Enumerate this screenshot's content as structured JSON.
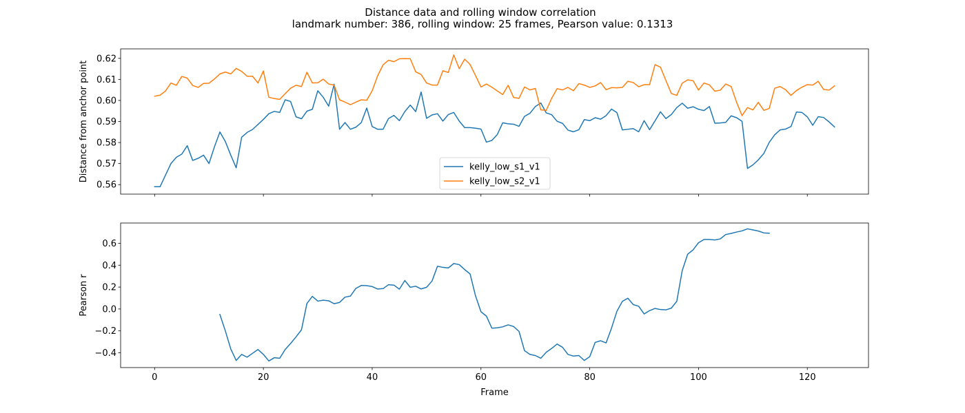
{
  "figure": {
    "title_line1": "Distance data and rolling window correlation",
    "title_line2": "landmark number: 386, rolling window: 25 frames, Pearson value: 0.1313"
  },
  "chart_data": [
    {
      "type": "line",
      "ylabel": "Distance from anchor point",
      "xlabel": "",
      "xlim": [
        -6.25,
        131.25
      ],
      "ylim": [
        0.5555,
        0.6245
      ],
      "yticks": [
        0.56,
        0.57,
        0.58,
        0.59,
        0.6,
        0.61,
        0.62
      ],
      "ytick_labels": [
        "0.56",
        "0.57",
        "0.58",
        "0.59",
        "0.60",
        "0.61",
        "0.62"
      ],
      "xticks": [
        0,
        20,
        40,
        60,
        80,
        100,
        120
      ],
      "show_xtick_labels": false,
      "legend_position": "lower-center",
      "series": [
        {
          "name": "kelly_low_s1_v1",
          "color": "#1f77b4",
          "x_start": 0,
          "values": [
            0.559,
            0.559,
            0.5645,
            0.57,
            0.573,
            0.5745,
            0.5785,
            0.5715,
            0.5725,
            0.574,
            0.57,
            0.578,
            0.585,
            0.5805,
            0.574,
            0.568,
            0.5825,
            0.5848,
            0.5862,
            0.5886,
            0.591,
            0.5937,
            0.5948,
            0.5943,
            0.6003,
            0.5995,
            0.5922,
            0.5913,
            0.5949,
            0.5958,
            0.6046,
            0.6015,
            0.5973,
            0.6077,
            0.5863,
            0.5895,
            0.5863,
            0.5873,
            0.5895,
            0.5964,
            0.5876,
            0.5863,
            0.5863,
            0.5914,
            0.5929,
            0.5904,
            0.5947,
            0.5978,
            0.5947,
            0.604,
            0.5915,
            0.5931,
            0.5937,
            0.5902,
            0.5933,
            0.5943,
            0.5902,
            0.5871,
            0.5871,
            0.5868,
            0.5864,
            0.5802,
            0.581,
            0.5838,
            0.5894,
            0.5889,
            0.5887,
            0.5877,
            0.5924,
            0.5939,
            0.5971,
            0.5988,
            0.5941,
            0.5932,
            0.5901,
            0.5891,
            0.5859,
            0.5851,
            0.5861,
            0.5909,
            0.5904,
            0.5918,
            0.5911,
            0.5928,
            0.5959,
            0.5942,
            0.586,
            0.5863,
            0.5866,
            0.5851,
            0.5904,
            0.5861,
            0.5903,
            0.5946,
            0.5914,
            0.5933,
            0.5966,
            0.5987,
            0.5963,
            0.597,
            0.5958,
            0.5952,
            0.5971,
            0.5892,
            0.5893,
            0.5896,
            0.5927,
            0.5918,
            0.5901,
            0.5677,
            0.5694,
            0.5718,
            0.5748,
            0.5801,
            0.5837,
            0.586,
            0.5864,
            0.5876,
            0.5945,
            0.5943,
            0.5922,
            0.5882,
            0.5923,
            0.5919,
            0.5898,
            0.5874
          ]
        },
        {
          "name": "kelly_low_s2_v1",
          "color": "#ff7f0e",
          "x_start": 0,
          "values": [
            0.602,
            0.6025,
            0.6045,
            0.6083,
            0.6072,
            0.6114,
            0.6106,
            0.6071,
            0.6062,
            0.6081,
            0.6082,
            0.6102,
            0.6126,
            0.6135,
            0.6126,
            0.6152,
            0.6138,
            0.6115,
            0.6115,
            0.6083,
            0.614,
            0.6015,
            0.6009,
            0.6005,
            0.6032,
            0.6058,
            0.6072,
            0.6066,
            0.6134,
            0.6083,
            0.6084,
            0.6101,
            0.6078,
            0.6073,
            0.6003,
            0.5992,
            0.598,
            0.5992,
            0.6003,
            0.6001,
            0.6046,
            0.6117,
            0.6169,
            0.6191,
            0.6184,
            0.6198,
            0.6199,
            0.6198,
            0.6136,
            0.6123,
            0.6083,
            0.6073,
            0.6073,
            0.6141,
            0.6133,
            0.6216,
            0.6151,
            0.6196,
            0.6171,
            0.6118,
            0.6064,
            0.6078,
            0.6063,
            0.6045,
            0.6028,
            0.6072,
            0.6014,
            0.601,
            0.6064,
            0.605,
            0.6057,
            0.5955,
            0.5953,
            0.601,
            0.6056,
            0.605,
            0.6062,
            0.6046,
            0.608,
            0.6073,
            0.6062,
            0.6069,
            0.6085,
            0.6051,
            0.6061,
            0.606,
            0.6062,
            0.6091,
            0.6085,
            0.6065,
            0.6075,
            0.6075,
            0.617,
            0.6158,
            0.6095,
            0.6033,
            0.6024,
            0.6082,
            0.6098,
            0.6094,
            0.6049,
            0.6083,
            0.6074,
            0.6044,
            0.6049,
            0.6078,
            0.6066,
            0.5991,
            0.5928,
            0.5966,
            0.5955,
            0.5991,
            0.5953,
            0.5962,
            0.6058,
            0.6066,
            0.6051,
            0.6024,
            0.6047,
            0.6063,
            0.6075,
            0.6073,
            0.6091,
            0.6052,
            0.6049,
            0.6069
          ]
        }
      ]
    },
    {
      "type": "line",
      "ylabel": "Pearson r",
      "xlabel": "Frame",
      "xlim": [
        -6.25,
        131.25
      ],
      "ylim": [
        -0.535,
        0.785
      ],
      "yticks": [
        -0.4,
        -0.2,
        0.0,
        0.2,
        0.4,
        0.6
      ],
      "ytick_labels": [
        "−0.4",
        "−0.2",
        "0.0",
        "0.2",
        "0.4",
        "0.6"
      ],
      "xticks": [
        0,
        20,
        40,
        60,
        80,
        100,
        120
      ],
      "xtick_labels": [
        "0",
        "20",
        "40",
        "60",
        "80",
        "100",
        "120"
      ],
      "series": [
        {
          "name": "",
          "color": "#1f77b4",
          "x_start": 12,
          "values": [
            -0.05,
            -0.2,
            -0.365,
            -0.47,
            -0.415,
            -0.44,
            -0.405,
            -0.37,
            -0.415,
            -0.475,
            -0.445,
            -0.45,
            -0.37,
            -0.315,
            -0.255,
            -0.19,
            0.05,
            0.115,
            0.072,
            0.08,
            0.075,
            0.048,
            0.06,
            0.108,
            0.118,
            0.188,
            0.215,
            0.213,
            0.205,
            0.182,
            0.186,
            0.222,
            0.218,
            0.181,
            0.26,
            0.198,
            0.208,
            0.183,
            0.198,
            0.255,
            0.39,
            0.38,
            0.375,
            0.415,
            0.405,
            0.36,
            0.32,
            0.12,
            -0.025,
            -0.065,
            -0.175,
            -0.172,
            -0.163,
            -0.145,
            -0.16,
            -0.205,
            -0.38,
            -0.415,
            -0.425,
            -0.45,
            -0.395,
            -0.36,
            -0.32,
            -0.35,
            -0.415,
            -0.43,
            -0.425,
            -0.47,
            -0.435,
            -0.305,
            -0.29,
            -0.31,
            -0.175,
            -0.02,
            0.07,
            0.098,
            0.04,
            0.025,
            -0.045,
            -0.015,
            0.005,
            -0.005,
            -0.008,
            0.008,
            0.07,
            0.35,
            0.5,
            0.54,
            0.605,
            0.635,
            0.635,
            0.63,
            0.64,
            0.68,
            0.69,
            0.703,
            0.713,
            0.732,
            0.722,
            0.712,
            0.695,
            0.692
          ]
        }
      ]
    }
  ]
}
